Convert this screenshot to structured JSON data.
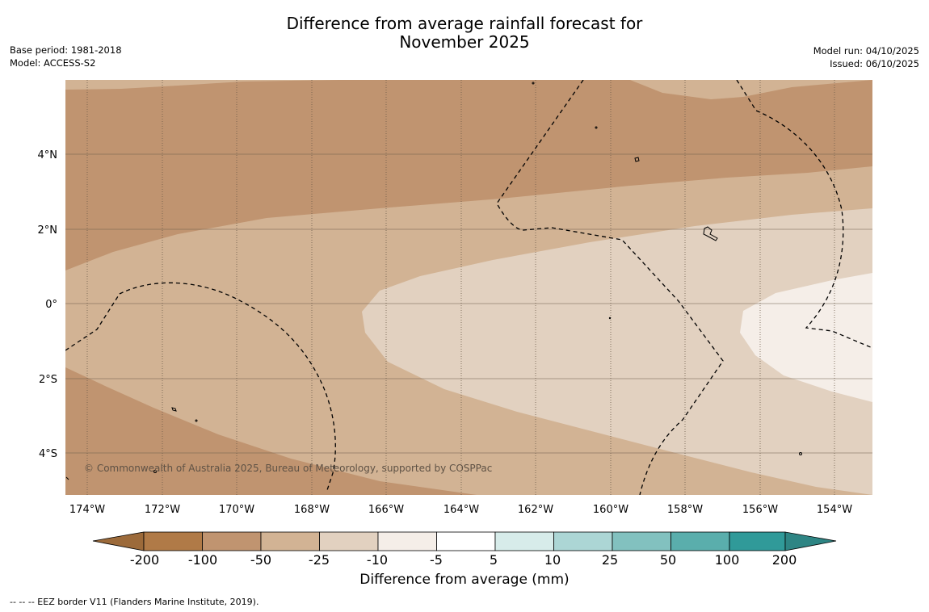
{
  "header": {
    "title_line1": "Difference from average rainfall forecast for",
    "title_line2": "November 2025",
    "base_period": "Base period: 1981-2018",
    "model": "Model: ACCESS-S2",
    "model_run": "Model run: 04/10/2025",
    "issued": "Issued: 06/10/2025"
  },
  "map": {
    "lon_labels": [
      "174°W",
      "172°W",
      "170°W",
      "168°W",
      "166°W",
      "164°W",
      "162°W",
      "160°W",
      "158°W",
      "156°W",
      "154°W"
    ],
    "lat_labels": [
      "4°N",
      "2°N",
      "0°",
      "2°S",
      "4°S"
    ],
    "copyright": "© Commonwealth of Australia 2025, Bureau of Meteorology, supported by COSPPac"
  },
  "colorbar": {
    "title": "Difference from average (mm)",
    "tick_labels": [
      "-200",
      "-100",
      "-50",
      "-25",
      "-10",
      "-5",
      "5",
      "10",
      "25",
      "50",
      "100",
      "200"
    ],
    "colors": [
      "#9c6a3a",
      "#b07a47",
      "#c09470",
      "#d2b394",
      "#e2d1c0",
      "#f5eee8",
      "#ffffff",
      "#d7ecea",
      "#acd6d5",
      "#82c1bf",
      "#5aaeac",
      "#309a99",
      "#2e8584"
    ]
  },
  "footer": {
    "legend_text": "--  --  -- EEZ border V11 (Flanders Marine Institute, 2019)."
  }
}
